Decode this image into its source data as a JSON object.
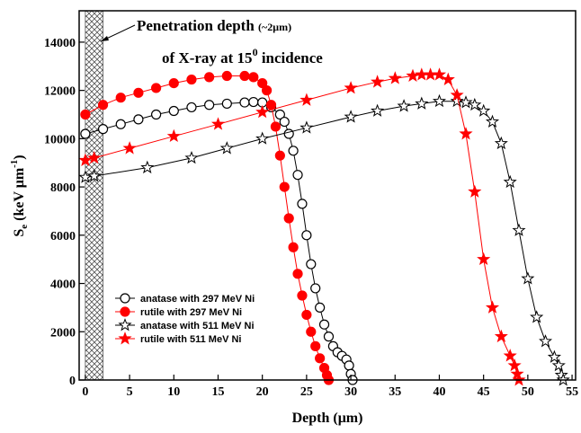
{
  "chart_data": {
    "type": "line",
    "x_label": "Depth (μm)",
    "y_label": {
      "main": "S",
      "sub": "e",
      "unit": " (keV μm",
      "sup": "-1",
      "close": ")"
    },
    "annotation": {
      "line1": "Penetration depth",
      "line1_small": "(~2μm)",
      "line2": "of X-ray at 15",
      "line2_sup": "0",
      "line2_end": " incidence"
    },
    "shaded_region": [
      0,
      2
    ],
    "xlim": [
      -0.7,
      55.4
    ],
    "ylim": [
      0,
      15300
    ],
    "xticks": [
      0,
      5,
      10,
      15,
      20,
      25,
      30,
      35,
      40,
      45,
      50,
      55
    ],
    "yticks": [
      0,
      2000,
      4000,
      6000,
      8000,
      10000,
      12000,
      14000
    ],
    "legend": "lower left",
    "series": [
      {
        "name": "anatase with 297 MeV Ni",
        "color": "#000000",
        "marker": "circle",
        "filled": false,
        "x": [
          0,
          2,
          4,
          6,
          8,
          10,
          12,
          14,
          16,
          18,
          19,
          20,
          21,
          22,
          22.5,
          23,
          23.5,
          24,
          24.5,
          25,
          25.5,
          26,
          26.5,
          27,
          27.5,
          28,
          28.5,
          29,
          29.5,
          29.8,
          30,
          30.2
        ],
        "values": [
          10200,
          10400,
          10600,
          10800,
          11000,
          11150,
          11300,
          11400,
          11450,
          11500,
          11520,
          11500,
          11300,
          11000,
          10700,
          10200,
          9500,
          8500,
          7300,
          6000,
          4800,
          3800,
          3000,
          2300,
          1800,
          1400,
          1150,
          1000,
          850,
          600,
          250,
          0
        ]
      },
      {
        "name": "rutile with 297 MeV Ni",
        "color": "#ff0000",
        "marker": "circle",
        "filled": true,
        "x": [
          0,
          2,
          4,
          6,
          8,
          10,
          12,
          14,
          16,
          18,
          19,
          20,
          20.5,
          21,
          21.5,
          22,
          22.5,
          23,
          23.5,
          24,
          24.5,
          25,
          25.5,
          26,
          26.5,
          27,
          27.3,
          27.5
        ],
        "values": [
          11000,
          11400,
          11700,
          11900,
          12100,
          12300,
          12450,
          12550,
          12600,
          12600,
          12550,
          12300,
          12000,
          11400,
          10500,
          9300,
          8000,
          6700,
          5500,
          4400,
          3500,
          2700,
          2000,
          1400,
          900,
          500,
          200,
          0
        ]
      },
      {
        "name": "anatase with 511 MeV Ni",
        "color": "#000000",
        "marker": "star",
        "filled": false,
        "x": [
          0,
          1,
          7,
          12,
          16,
          20,
          25,
          30,
          33,
          36,
          38,
          40,
          42,
          43,
          44,
          45,
          46,
          47,
          48,
          49,
          50,
          51,
          52,
          53,
          53.5,
          53.8,
          54
        ],
        "values": [
          8400,
          8450,
          8800,
          9200,
          9600,
          10000,
          10450,
          10900,
          11150,
          11350,
          11450,
          11550,
          11550,
          11500,
          11400,
          11150,
          10700,
          9800,
          8200,
          6200,
          4200,
          2600,
          1600,
          950,
          600,
          200,
          0
        ]
      },
      {
        "name": "rutile with 511 MeV Ni",
        "color": "#ff0000",
        "marker": "star",
        "filled": true,
        "x": [
          0,
          1,
          5,
          10,
          15,
          20,
          25,
          30,
          33,
          35,
          37,
          38,
          39,
          40,
          41,
          42,
          43,
          44,
          45,
          46,
          47,
          48,
          48.5,
          48.8,
          49
        ],
        "values": [
          9100,
          9200,
          9600,
          10100,
          10600,
          11100,
          11600,
          12100,
          12350,
          12500,
          12600,
          12650,
          12650,
          12650,
          12450,
          11800,
          10200,
          7800,
          5000,
          3000,
          1800,
          1000,
          600,
          250,
          0
        ]
      }
    ]
  }
}
